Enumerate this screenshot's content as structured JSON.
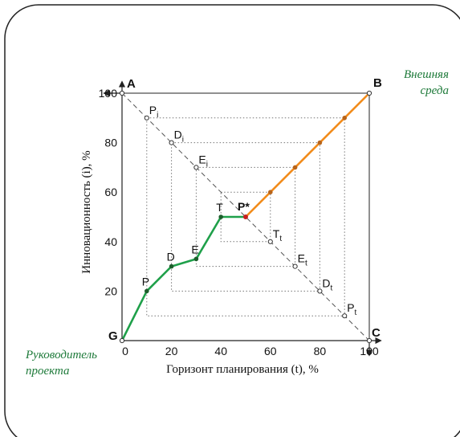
{
  "colors": {
    "green_path": "#1fa04a",
    "orange_path": "#f28c1c",
    "green_text": "#1e7a3a",
    "dotted": "#777777",
    "frame": "#222222"
  },
  "corners": {
    "a": "A",
    "b": "B",
    "c": "C",
    "g": "G"
  },
  "axes": {
    "x_label": "Горизонт планирования (t), %",
    "y_label": "Инновационность (i), %",
    "x_ticks": [
      "0",
      "20",
      "40",
      "60",
      "80",
      "100"
    ],
    "y_ticks": [
      "20",
      "40",
      "60",
      "80",
      "100"
    ]
  },
  "labels": {
    "external": [
      "Внешняя",
      "среда"
    ],
    "manager": [
      "Руководитель",
      "проекта"
    ]
  },
  "diagonal_points": [
    {
      "base": "P",
      "sub": "i",
      "t": 10,
      "i": 90
    },
    {
      "base": "D",
      "sub": "i",
      "t": 20,
      "i": 80
    },
    {
      "base": "E",
      "sub": "i",
      "t": 30,
      "i": 70
    },
    {
      "base": "T",
      "sub": "t",
      "t": 60,
      "i": 40
    },
    {
      "base": "E",
      "sub": "t",
      "t": 70,
      "i": 30
    },
    {
      "base": "D",
      "sub": "t",
      "t": 80,
      "i": 20
    },
    {
      "base": "P",
      "sub": "t",
      "t": 90,
      "i": 10
    }
  ],
  "nested_squares": [
    10,
    20,
    30,
    40
  ],
  "green_path": [
    {
      "label": "G",
      "t": 0,
      "i": 0
    },
    {
      "label": "P",
      "t": 10,
      "i": 20
    },
    {
      "label": "D",
      "t": 20,
      "i": 30
    },
    {
      "label": "E",
      "t": 30,
      "i": 33
    },
    {
      "label": "T",
      "t": 40,
      "i": 50
    },
    {
      "label": "P*",
      "t": 50,
      "i": 50
    }
  ],
  "orange_path": [
    {
      "t": 50,
      "i": 50
    },
    {
      "t": 60,
      "i": 60
    },
    {
      "t": 70,
      "i": 70
    },
    {
      "t": 80,
      "i": 80
    },
    {
      "t": 90,
      "i": 90
    },
    {
      "t": 100,
      "i": 100
    }
  ]
}
